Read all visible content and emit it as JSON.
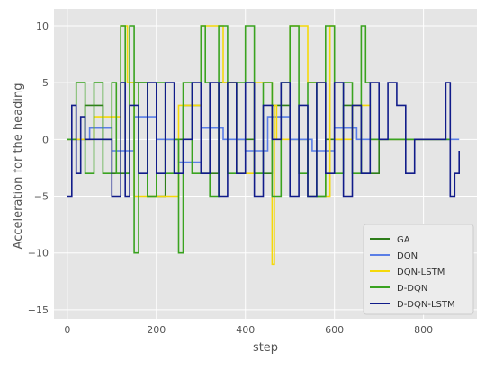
{
  "chart_data": {
    "type": "line",
    "xlabel": "step",
    "ylabel": "Acceleration for the heading",
    "xlim": [
      -30,
      920
    ],
    "ylim": [
      -15.8,
      11.5
    ],
    "xticks": [
      0,
      200,
      400,
      600,
      800
    ],
    "xtick_labels": [
      "0",
      "200",
      "400",
      "600",
      "800"
    ],
    "yticks": [
      -15,
      -10,
      -5,
      0,
      5,
      10
    ],
    "ytick_labels": [
      "−15",
      "−10",
      "−5",
      "0",
      "5",
      "10"
    ],
    "grid": true,
    "style": "ggplot",
    "legend_position": "lower-right",
    "series": [
      {
        "name": "GA",
        "color": "#2e7d1a",
        "x": [
          0,
          40,
          80,
          100,
          140,
          180,
          220,
          260,
          300,
          340,
          380,
          420,
          460,
          500,
          540,
          580,
          620,
          660,
          700,
          740,
          780,
          820,
          860
        ],
        "y": [
          0,
          3,
          0,
          -3,
          5,
          -5,
          0,
          3,
          -3,
          5,
          0,
          -3,
          3,
          0,
          -5,
          0,
          3,
          -3,
          0,
          0,
          0,
          0,
          0
        ]
      },
      {
        "name": "DQN",
        "color": "#5a7ee6",
        "x": [
          0,
          50,
          100,
          150,
          200,
          250,
          300,
          350,
          400,
          450,
          500,
          550,
          600,
          650,
          700,
          750,
          800,
          850,
          880
        ],
        "y": [
          0,
          1,
          -1,
          2,
          0,
          -2,
          1,
          0,
          -1,
          2,
          0,
          -1,
          1,
          0,
          0,
          0,
          0,
          0,
          0
        ]
      },
      {
        "name": "DQN-LSTM",
        "color": "#f5d90a",
        "x": [
          0,
          60,
          120,
          135,
          150,
          250,
          300,
          350,
          380,
          420,
          460,
          465,
          470,
          500,
          540,
          580,
          590,
          600,
          640,
          680,
          720,
          760,
          800,
          840
        ],
        "y": [
          0,
          2,
          10,
          5,
          -5,
          3,
          10,
          5,
          -3,
          5,
          -11,
          3,
          0,
          10,
          5,
          -5,
          10,
          0,
          3,
          0,
          0,
          0,
          0,
          0
        ]
      },
      {
        "name": "D-DQN",
        "color": "#3aa320",
        "x": [
          0,
          20,
          40,
          60,
          80,
          100,
          110,
          120,
          130,
          140,
          150,
          160,
          180,
          200,
          220,
          240,
          250,
          260,
          280,
          300,
          310,
          320,
          340,
          360,
          380,
          400,
          420,
          440,
          460,
          480,
          500,
          520,
          540,
          560,
          580,
          600,
          620,
          640,
          660,
          670,
          680,
          700,
          720,
          740,
          760,
          780,
          800,
          820,
          840,
          860
        ],
        "y": [
          0,
          5,
          -3,
          5,
          -3,
          5,
          -3,
          10,
          -3,
          10,
          -10,
          5,
          -5,
          5,
          -3,
          0,
          -10,
          5,
          -3,
          10,
          5,
          -5,
          10,
          -3,
          5,
          10,
          -3,
          5,
          -5,
          5,
          10,
          -3,
          5,
          -5,
          10,
          -3,
          5,
          -3,
          10,
          5,
          0,
          0,
          0,
          0,
          0,
          0,
          0,
          0,
          0,
          0
        ]
      },
      {
        "name": "D-DQN-LSTM",
        "color": "#111c8a",
        "x": [
          0,
          10,
          20,
          30,
          40,
          60,
          80,
          100,
          120,
          130,
          140,
          160,
          180,
          200,
          220,
          240,
          260,
          280,
          300,
          320,
          340,
          360,
          380,
          400,
          420,
          440,
          460,
          480,
          500,
          520,
          540,
          560,
          580,
          600,
          620,
          640,
          660,
          680,
          700,
          720,
          740,
          760,
          780,
          800,
          820,
          840,
          850,
          860,
          870,
          880
        ],
        "y": [
          -5,
          3,
          -3,
          2,
          0,
          0,
          0,
          -5,
          5,
          -5,
          3,
          -3,
          5,
          -3,
          5,
          -3,
          0,
          5,
          -3,
          5,
          -5,
          5,
          -3,
          5,
          -5,
          3,
          0,
          5,
          -5,
          3,
          -5,
          5,
          -3,
          5,
          -5,
          3,
          -3,
          5,
          0,
          5,
          3,
          -3,
          0,
          0,
          0,
          0,
          5,
          -5,
          -3,
          -1
        ]
      }
    ]
  }
}
